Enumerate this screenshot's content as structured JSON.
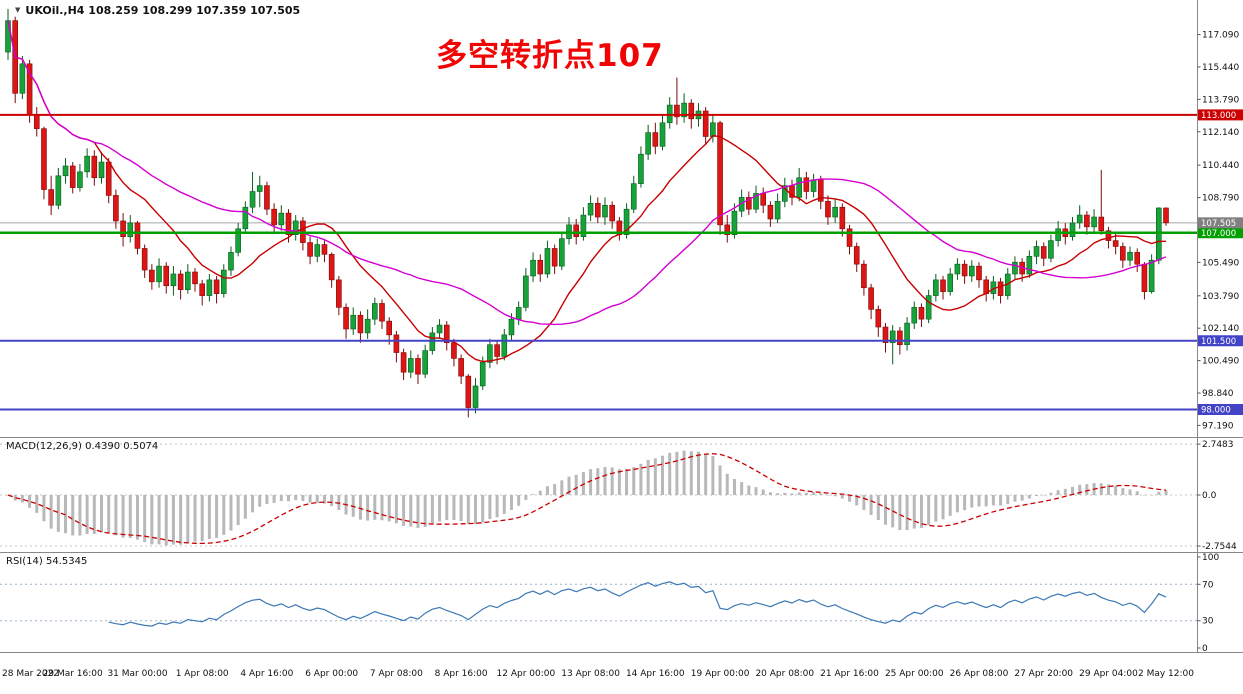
{
  "window": {
    "title": "UKOil.,H4 108.259 108.299 107.359 107.505"
  },
  "time_axis": {
    "labels": [
      "28 Mar 2022",
      "29 Mar 16:00",
      "31 Mar 00:00",
      "1 Apr 08:00",
      "4 Apr 16:00",
      "6 Apr 00:00",
      "7 Apr 08:00",
      "8 Apr 16:00",
      "12 Apr 00:00",
      "13 Apr 08:00",
      "14 Apr 16:00",
      "19 Apr 00:00",
      "20 Apr 08:00",
      "21 Apr 16:00",
      "25 Apr 00:00",
      "26 Apr 08:00",
      "27 Apr 20:00",
      "29 Apr 04:00",
      "2 May 12:00"
    ]
  },
  "chart_data": [
    {
      "type": "candlestick",
      "symbol": "UKOil.",
      "timeframe": "H4",
      "title": "UKOil.,H4 108.259 108.299 107.359 107.505",
      "last_ohlc": {
        "open": 108.259,
        "high": 108.299,
        "low": 107.359,
        "close": 107.505
      },
      "annotation": {
        "text": "多空转折点107",
        "color": "#f00404"
      },
      "ylim": [
        96.6,
        118.85
      ],
      "y_ticks": [
        "117.090",
        "115.440",
        "113.790",
        "112.140",
        "110.440",
        "108.790",
        "105.490",
        "103.790",
        "102.140",
        "100.490",
        "98.840",
        "97.190"
      ],
      "hlines": [
        {
          "value": 113.0,
          "color": "#cc0000",
          "width": 2
        },
        {
          "value": 107.0,
          "color": "#00a000",
          "width": 2.4
        },
        {
          "value": 101.5,
          "color": "#4343c8",
          "width": 2
        },
        {
          "value": 98.0,
          "color": "#4343c8",
          "width": 2
        }
      ],
      "price_line": {
        "value": 107.505,
        "color": "#a8a8a8",
        "width": 1
      },
      "price_tags": [
        {
          "label": "113.000",
          "value": 113.0,
          "color": "#cc0000"
        },
        {
          "label": "107.000",
          "value": 107.0,
          "color": "#00a000"
        },
        {
          "label": "101.500",
          "value": 101.5,
          "color": "#4343c8"
        },
        {
          "label": "98.000",
          "value": 98.0,
          "color": "#4343c8"
        },
        {
          "label": "107.505",
          "value": 107.505,
          "color": "#808080"
        }
      ],
      "up_body": "#18a23a",
      "up_edge": "#0a5c1e",
      "down_body": "#de1515",
      "down_edge": "#7d0909",
      "ma": [
        {
          "name": "ma-fast",
          "period": 13,
          "color": "#c80000"
        },
        {
          "name": "ma-slow",
          "period": 34,
          "color": "#d400d4"
        }
      ],
      "candles": [
        [
          116.2,
          118.4,
          115.8,
          117.8
        ],
        [
          117.8,
          118.0,
          113.6,
          114.1
        ],
        [
          114.1,
          116.0,
          113.8,
          115.6
        ],
        [
          115.6,
          115.8,
          112.6,
          113.0
        ],
        [
          113.0,
          113.4,
          111.9,
          112.3
        ],
        [
          112.3,
          112.4,
          108.7,
          109.2
        ],
        [
          109.2,
          109.9,
          107.9,
          108.4
        ],
        [
          108.4,
          110.3,
          108.2,
          109.9
        ],
        [
          109.9,
          110.8,
          109.5,
          110.4
        ],
        [
          110.4,
          110.6,
          109.0,
          109.3
        ],
        [
          109.3,
          110.5,
          109.1,
          110.1
        ],
        [
          110.1,
          111.3,
          109.8,
          110.9
        ],
        [
          110.9,
          111.2,
          109.4,
          109.8
        ],
        [
          109.8,
          111.1,
          109.5,
          110.6
        ],
        [
          110.6,
          110.8,
          108.5,
          108.9
        ],
        [
          108.9,
          109.2,
          107.2,
          107.6
        ],
        [
          107.6,
          108.0,
          106.3,
          106.8
        ],
        [
          106.8,
          107.9,
          106.5,
          107.5
        ],
        [
          107.5,
          107.6,
          105.9,
          106.2
        ],
        [
          106.2,
          106.4,
          104.7,
          105.1
        ],
        [
          105.1,
          105.4,
          104.1,
          104.5
        ],
        [
          104.5,
          105.7,
          104.2,
          105.3
        ],
        [
          105.3,
          105.5,
          103.9,
          104.3
        ],
        [
          104.3,
          105.3,
          103.8,
          104.9
        ],
        [
          104.9,
          105.1,
          103.6,
          104.1
        ],
        [
          104.1,
          105.4,
          103.9,
          105.0
        ],
        [
          105.0,
          105.2,
          104.0,
          104.4
        ],
        [
          104.4,
          104.6,
          103.3,
          103.8
        ],
        [
          103.8,
          104.9,
          103.5,
          104.6
        ],
        [
          104.6,
          104.8,
          103.4,
          103.9
        ],
        [
          103.9,
          105.4,
          103.7,
          105.1
        ],
        [
          105.1,
          106.3,
          104.8,
          106.0
        ],
        [
          106.0,
          107.5,
          105.8,
          107.2
        ],
        [
          107.2,
          108.6,
          107.0,
          108.3
        ],
        [
          108.3,
          110.1,
          108.0,
          109.1
        ],
        [
          109.1,
          109.9,
          108.3,
          109.4
        ],
        [
          109.4,
          109.6,
          107.9,
          108.2
        ],
        [
          108.2,
          108.5,
          107.0,
          107.4
        ],
        [
          107.4,
          108.4,
          107.1,
          108.0
        ],
        [
          108.0,
          108.2,
          106.5,
          106.9
        ],
        [
          106.9,
          107.9,
          106.6,
          107.6
        ],
        [
          107.6,
          107.8,
          106.1,
          106.5
        ],
        [
          106.5,
          106.8,
          105.4,
          105.8
        ],
        [
          105.8,
          106.7,
          105.5,
          106.4
        ],
        [
          106.4,
          106.6,
          105.5,
          105.9
        ],
        [
          105.9,
          106.0,
          104.2,
          104.6
        ],
        [
          104.6,
          104.8,
          102.8,
          103.2
        ],
        [
          103.2,
          103.4,
          101.6,
          102.1
        ],
        [
          102.1,
          103.2,
          101.8,
          102.8
        ],
        [
          102.8,
          103.0,
          101.4,
          101.9
        ],
        [
          101.9,
          103.1,
          101.6,
          102.6
        ],
        [
          102.6,
          103.7,
          102.3,
          103.4
        ],
        [
          103.4,
          103.6,
          102.1,
          102.5
        ],
        [
          102.5,
          102.7,
          101.3,
          101.8
        ],
        [
          101.8,
          102.0,
          100.4,
          100.9
        ],
        [
          100.9,
          101.1,
          99.5,
          99.9
        ],
        [
          99.9,
          101.0,
          99.6,
          100.6
        ],
        [
          100.6,
          100.8,
          99.3,
          99.8
        ],
        [
          99.8,
          101.3,
          99.6,
          101.0
        ],
        [
          101.0,
          102.2,
          100.8,
          101.9
        ],
        [
          101.9,
          102.6,
          101.6,
          102.3
        ],
        [
          102.3,
          102.5,
          101.0,
          101.4
        ],
        [
          101.4,
          101.6,
          100.2,
          100.6
        ],
        [
          100.6,
          100.8,
          99.3,
          99.7
        ],
        [
          99.7,
          99.8,
          97.6,
          98.1
        ],
        [
          98.1,
          99.6,
          97.8,
          99.2
        ],
        [
          99.2,
          100.7,
          99.0,
          100.4
        ],
        [
          100.4,
          101.6,
          100.1,
          101.3
        ],
        [
          101.3,
          101.5,
          100.3,
          100.7
        ],
        [
          100.7,
          102.1,
          100.5,
          101.8
        ],
        [
          101.8,
          102.9,
          101.5,
          102.6
        ],
        [
          102.6,
          103.5,
          102.3,
          103.2
        ],
        [
          103.2,
          105.2,
          103.0,
          104.8
        ],
        [
          104.8,
          106.0,
          104.5,
          105.6
        ],
        [
          105.6,
          105.9,
          104.5,
          104.9
        ],
        [
          104.9,
          106.6,
          104.7,
          106.2
        ],
        [
          106.2,
          106.4,
          104.9,
          105.3
        ],
        [
          105.3,
          107.0,
          105.1,
          106.7
        ],
        [
          106.7,
          107.8,
          106.4,
          107.4
        ],
        [
          107.4,
          107.7,
          106.4,
          106.8
        ],
        [
          106.8,
          108.3,
          106.6,
          107.9
        ],
        [
          107.9,
          108.9,
          107.6,
          108.5
        ],
        [
          108.5,
          108.8,
          107.5,
          107.8
        ],
        [
          107.8,
          108.8,
          107.4,
          108.4
        ],
        [
          108.4,
          108.6,
          107.2,
          107.6
        ],
        [
          107.6,
          107.8,
          106.6,
          106.9
        ],
        [
          106.9,
          108.5,
          106.7,
          108.2
        ],
        [
          108.2,
          109.9,
          108.0,
          109.5
        ],
        [
          109.5,
          111.4,
          109.3,
          111.0
        ],
        [
          111.0,
          112.5,
          110.7,
          112.1
        ],
        [
          112.1,
          112.6,
          111.0,
          111.4
        ],
        [
          111.4,
          113.0,
          111.2,
          112.6
        ],
        [
          112.6,
          113.9,
          112.3,
          113.5
        ],
        [
          113.5,
          114.9,
          112.5,
          112.9
        ],
        [
          112.9,
          114.1,
          112.6,
          113.6
        ],
        [
          113.6,
          113.8,
          112.3,
          112.8
        ],
        [
          112.8,
          113.6,
          112.4,
          113.2
        ],
        [
          113.2,
          113.4,
          111.5,
          111.9
        ],
        [
          111.9,
          113.0,
          111.6,
          112.6
        ],
        [
          112.6,
          112.7,
          106.9,
          107.4
        ],
        [
          107.4,
          107.9,
          106.5,
          106.9
        ],
        [
          106.9,
          108.5,
          106.7,
          108.1
        ],
        [
          108.1,
          109.2,
          107.8,
          108.8
        ],
        [
          108.8,
          109.1,
          107.9,
          108.2
        ],
        [
          108.2,
          109.4,
          108.0,
          109.0
        ],
        [
          109.0,
          109.3,
          108.0,
          108.4
        ],
        [
          108.4,
          108.6,
          107.3,
          107.7
        ],
        [
          107.7,
          109.0,
          107.5,
          108.6
        ],
        [
          108.6,
          109.8,
          108.3,
          109.4
        ],
        [
          109.4,
          109.7,
          108.4,
          108.8
        ],
        [
          108.8,
          110.3,
          108.6,
          109.8
        ],
        [
          109.8,
          110.1,
          108.7,
          109.1
        ],
        [
          109.1,
          110.0,
          108.8,
          109.7
        ],
        [
          109.7,
          109.9,
          108.2,
          108.6
        ],
        [
          108.6,
          108.9,
          107.4,
          107.8
        ],
        [
          107.8,
          108.7,
          107.5,
          108.3
        ],
        [
          108.3,
          108.5,
          106.8,
          107.2
        ],
        [
          107.2,
          107.4,
          105.9,
          106.3
        ],
        [
          106.3,
          106.5,
          105.0,
          105.4
        ],
        [
          105.4,
          105.6,
          103.8,
          104.2
        ],
        [
          104.2,
          104.4,
          102.6,
          103.1
        ],
        [
          103.1,
          103.3,
          101.7,
          102.2
        ],
        [
          102.2,
          102.4,
          100.9,
          101.4
        ],
        [
          101.4,
          102.3,
          100.3,
          102.0
        ],
        [
          102.0,
          102.2,
          100.8,
          101.3
        ],
        [
          101.3,
          102.7,
          101.0,
          102.4
        ],
        [
          102.4,
          103.5,
          102.1,
          103.2
        ],
        [
          103.2,
          103.4,
          102.2,
          102.6
        ],
        [
          102.6,
          104.1,
          102.4,
          103.8
        ],
        [
          103.8,
          104.9,
          103.5,
          104.6
        ],
        [
          104.6,
          104.8,
          103.6,
          104.0
        ],
        [
          104.0,
          105.2,
          103.8,
          104.9
        ],
        [
          104.9,
          105.7,
          104.6,
          105.4
        ],
        [
          105.4,
          105.6,
          104.4,
          104.8
        ],
        [
          104.8,
          105.6,
          104.5,
          105.3
        ],
        [
          105.3,
          105.5,
          104.2,
          104.6
        ],
        [
          104.6,
          104.8,
          103.5,
          103.9
        ],
        [
          103.9,
          104.8,
          103.6,
          104.5
        ],
        [
          104.5,
          104.7,
          103.4,
          103.8
        ],
        [
          103.8,
          105.2,
          103.6,
          104.9
        ],
        [
          104.9,
          105.8,
          104.6,
          105.5
        ],
        [
          105.5,
          105.7,
          104.5,
          104.9
        ],
        [
          104.9,
          106.1,
          104.7,
          105.8
        ],
        [
          105.8,
          106.6,
          105.4,
          106.3
        ],
        [
          106.3,
          106.5,
          105.3,
          105.7
        ],
        [
          105.7,
          106.9,
          105.5,
          106.6
        ],
        [
          106.6,
          107.6,
          106.3,
          107.2
        ],
        [
          107.2,
          107.5,
          106.4,
          106.8
        ],
        [
          106.8,
          107.8,
          106.6,
          107.5
        ],
        [
          107.5,
          108.4,
          107.2,
          107.9
        ],
        [
          107.9,
          108.1,
          106.9,
          107.3
        ],
        [
          107.3,
          108.2,
          107.0,
          107.8
        ],
        [
          107.8,
          110.2,
          106.9,
          107.1
        ],
        [
          107.1,
          107.3,
          106.2,
          106.6
        ],
        [
          106.6,
          107.0,
          105.9,
          106.3
        ],
        [
          106.3,
          106.5,
          105.2,
          105.6
        ],
        [
          105.6,
          106.3,
          105.3,
          106.0
        ],
        [
          106.0,
          106.2,
          105.0,
          105.4
        ],
        [
          105.4,
          105.5,
          103.6,
          104.0
        ],
        [
          104.0,
          105.9,
          103.9,
          105.6
        ],
        [
          105.6,
          108.3,
          105.4,
          108.26
        ],
        [
          108.259,
          108.299,
          107.359,
          107.505
        ]
      ]
    },
    {
      "type": "macd",
      "label": "MACD(12,26,9) 0.4390 0.5074",
      "params": [
        12,
        26,
        9
      ],
      "value": 0.439,
      "signal_value": 0.5074,
      "y_ticks": [
        "2.7483",
        "0.0",
        "-2.7544"
      ],
      "histogram_color": "#b8b8b8",
      "signal_color": "#cc0000",
      "level_color": "#c4c4c4"
    },
    {
      "type": "rsi",
      "label": "RSI(14) 54.5345",
      "period": 14,
      "value": 54.5345,
      "y_ticks": [
        "100",
        "70",
        "30",
        "0"
      ],
      "levels": [
        70,
        30
      ],
      "line_color": "#3c78b4",
      "level_color": "#9ab4cc"
    }
  ]
}
